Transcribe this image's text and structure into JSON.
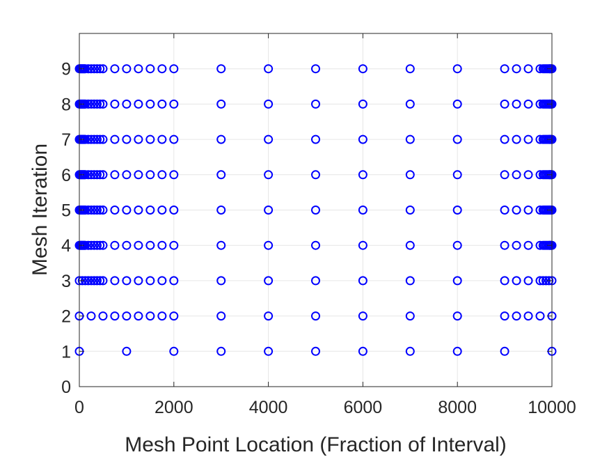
{
  "chart_data": {
    "type": "scatter",
    "title": "",
    "xlabel": "Mesh Point Location (Fraction of Interval)",
    "ylabel": "Mesh Iteration",
    "xlim": [
      0,
      10000
    ],
    "ylim": [
      0,
      10
    ],
    "xticks": [
      0,
      2000,
      4000,
      6000,
      8000,
      10000
    ],
    "yticks": [
      0,
      1,
      2,
      3,
      4,
      5,
      6,
      7,
      8,
      9
    ],
    "xtick_labels": [
      "0",
      "2000",
      "4000",
      "6000",
      "8000",
      "10000"
    ],
    "ytick_labels": [
      "0",
      "1",
      "2",
      "3",
      "4",
      "5",
      "6",
      "7",
      "8",
      "9"
    ],
    "grid": true,
    "legend": "none",
    "marker": "open-circle",
    "marker_color": "#0000ff",
    "series": [
      {
        "y": 1,
        "x": [
          0,
          1000,
          2000,
          3000,
          4000,
          5000,
          6000,
          7000,
          8000,
          9000,
          10000
        ]
      },
      {
        "y": 2,
        "x": [
          0,
          250,
          500,
          750,
          1000,
          1250,
          1500,
          1750,
          2000,
          3000,
          4000,
          5000,
          6000,
          7000,
          8000,
          9000,
          9250,
          9500,
          9750,
          10000
        ]
      },
      {
        "y": 3,
        "x": [
          0,
          62.5,
          125,
          187.5,
          250,
          312.5,
          375,
          437.5,
          500,
          750,
          1000,
          1250,
          1500,
          1750,
          2000,
          3000,
          4000,
          5000,
          6000,
          7000,
          8000,
          9000,
          9250,
          9500,
          9750,
          9812.5,
          9875,
          9937.5,
          10000
        ]
      },
      {
        "y": 4,
        "x": [
          0,
          15.6,
          31.3,
          46.9,
          62.5,
          78.1,
          93.8,
          109.4,
          125,
          187.5,
          250,
          312.5,
          375,
          437.5,
          500,
          750,
          1000,
          1250,
          1500,
          1750,
          2000,
          3000,
          4000,
          5000,
          6000,
          7000,
          8000,
          9000,
          9250,
          9500,
          9750,
          9812.5,
          9843.8,
          9875,
          9906.3,
          9937.5,
          9953.1,
          9968.8,
          9984.4,
          10000
        ]
      },
      {
        "y": 5,
        "x": [
          0,
          15.6,
          31.3,
          46.9,
          62.5,
          78.1,
          93.8,
          109.4,
          125,
          187.5,
          250,
          312.5,
          375,
          437.5,
          500,
          750,
          1000,
          1250,
          1500,
          1750,
          2000,
          3000,
          4000,
          5000,
          6000,
          7000,
          8000,
          9000,
          9250,
          9500,
          9750,
          9812.5,
          9843.8,
          9875,
          9906.3,
          9937.5,
          9953.1,
          9968.8,
          9984.4,
          10000
        ]
      },
      {
        "y": 6,
        "x": [
          0,
          15.6,
          31.3,
          46.9,
          62.5,
          78.1,
          93.8,
          109.4,
          125,
          187.5,
          250,
          312.5,
          375,
          437.5,
          500,
          750,
          1000,
          1250,
          1500,
          1750,
          2000,
          3000,
          4000,
          5000,
          6000,
          7000,
          8000,
          9000,
          9250,
          9500,
          9750,
          9812.5,
          9843.8,
          9875,
          9906.3,
          9937.5,
          9953.1,
          9968.8,
          9984.4,
          10000
        ]
      },
      {
        "y": 7,
        "x": [
          0,
          15.6,
          31.3,
          46.9,
          62.5,
          78.1,
          93.8,
          109.4,
          125,
          187.5,
          250,
          312.5,
          375,
          437.5,
          500,
          750,
          1000,
          1250,
          1500,
          1750,
          2000,
          3000,
          4000,
          5000,
          6000,
          7000,
          8000,
          9000,
          9250,
          9500,
          9750,
          9812.5,
          9843.8,
          9875,
          9906.3,
          9937.5,
          9953.1,
          9968.8,
          9984.4,
          10000
        ]
      },
      {
        "y": 8,
        "x": [
          0,
          15.6,
          31.3,
          46.9,
          62.5,
          78.1,
          93.8,
          109.4,
          125,
          187.5,
          250,
          312.5,
          375,
          437.5,
          500,
          750,
          1000,
          1250,
          1500,
          1750,
          2000,
          3000,
          4000,
          5000,
          6000,
          7000,
          8000,
          9000,
          9250,
          9500,
          9750,
          9812.5,
          9843.8,
          9875,
          9906.3,
          9937.5,
          9953.1,
          9968.8,
          9984.4,
          10000
        ]
      },
      {
        "y": 9,
        "x": [
          0,
          15.6,
          31.3,
          46.9,
          62.5,
          78.1,
          93.8,
          109.4,
          125,
          187.5,
          250,
          312.5,
          375,
          437.5,
          500,
          750,
          1000,
          1250,
          1500,
          1750,
          2000,
          3000,
          4000,
          5000,
          6000,
          7000,
          8000,
          9000,
          9250,
          9500,
          9750,
          9812.5,
          9843.8,
          9875,
          9906.3,
          9937.5,
          9953.1,
          9968.8,
          9984.4,
          10000
        ]
      }
    ]
  }
}
